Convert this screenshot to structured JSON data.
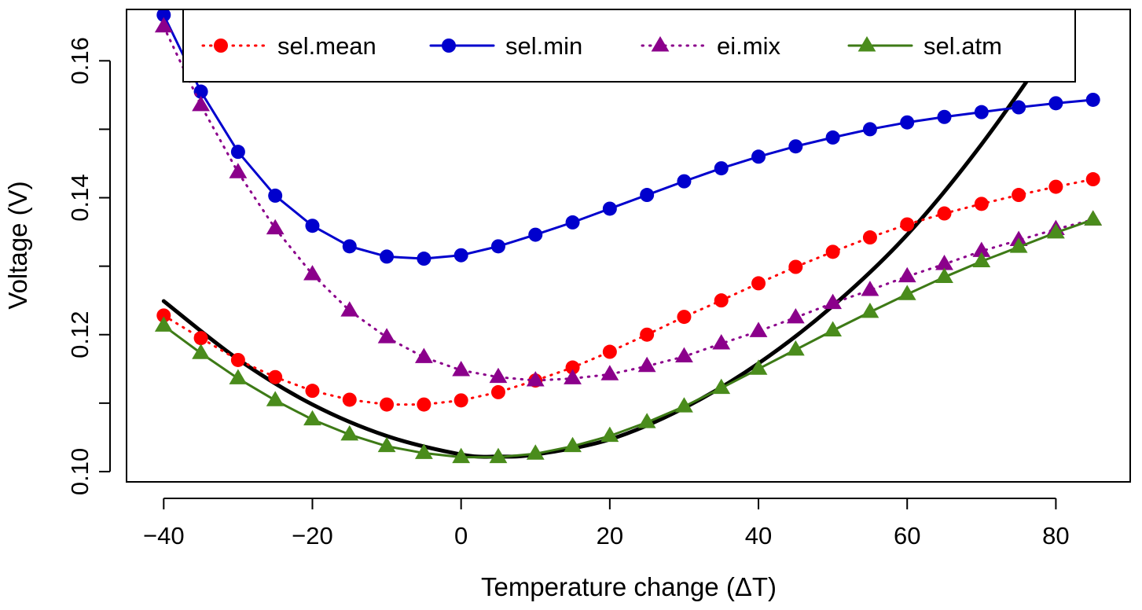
{
  "chart_data": {
    "type": "line",
    "title": "",
    "xlabel": "Temperature change (ΔT)",
    "ylabel": "Voltage (V)",
    "xlim": [
      -45,
      90
    ],
    "ylim": [
      0.0985,
      0.1675
    ],
    "x_ticks": [
      -40,
      -20,
      0,
      20,
      40,
      60,
      80
    ],
    "x_tick_labels": [
      "−40",
      "−20",
      "0",
      "20",
      "40",
      "60",
      "80"
    ],
    "y_ticks": [
      0.1,
      0.11,
      0.12,
      0.13,
      0.14,
      0.15,
      0.16
    ],
    "y_tick_labels": [
      "0.10",
      "",
      "0.12",
      "",
      "0.14",
      "",
      "0.16"
    ],
    "grid": false,
    "legend_position": "top",
    "x": [
      -40,
      -35,
      -30,
      -25,
      -20,
      -15,
      -10,
      -5,
      0,
      5,
      10,
      15,
      20,
      25,
      30,
      35,
      40,
      45,
      50,
      55,
      60,
      65,
      70,
      75,
      80,
      85
    ],
    "series": [
      {
        "name": "sel.mean",
        "color": "#ff0000",
        "line_color": "#ff0000",
        "line_style": "dotted",
        "marker": "circle",
        "values": [
          0.1228,
          0.1195,
          0.1163,
          0.1138,
          0.1118,
          0.1105,
          0.1098,
          0.1098,
          0.1104,
          0.1116,
          0.1133,
          0.1152,
          0.1175,
          0.12,
          0.1226,
          0.125,
          0.1275,
          0.1299,
          0.1321,
          0.1342,
          0.1361,
          0.1377,
          0.1391,
          0.1404,
          0.1416,
          0.1427
        ]
      },
      {
        "name": "sel.min",
        "color": "#0000cd",
        "line_color": "#0000cd",
        "line_style": "solid",
        "marker": "circle",
        "values": [
          0.1667,
          0.1555,
          0.1467,
          0.1403,
          0.1359,
          0.1329,
          0.1314,
          0.1311,
          0.1316,
          0.1329,
          0.1346,
          0.1364,
          0.1384,
          0.1404,
          0.1424,
          0.1443,
          0.146,
          0.1475,
          0.1488,
          0.15,
          0.151,
          0.1518,
          0.1525,
          0.1532,
          0.1538,
          0.1543
        ]
      },
      {
        "name": "ei.mix",
        "color": "#8b008b",
        "line_color": "#8b008b",
        "line_style": "dotted",
        "marker": "triangle",
        "values": [
          0.165,
          0.1535,
          0.1437,
          0.1355,
          0.1288,
          0.1235,
          0.1196,
          0.1167,
          0.1148,
          0.1138,
          0.1133,
          0.1136,
          0.1142,
          0.1154,
          0.1168,
          0.1187,
          0.1205,
          0.1225,
          0.1246,
          0.1265,
          0.1285,
          0.1303,
          0.1322,
          0.1338,
          0.1354,
          0.1368
        ]
      },
      {
        "name": "sel.atm",
        "color": "#4a8c1c",
        "line_color": "#3d7a16",
        "line_style": "solid",
        "marker": "triangle",
        "values": [
          0.1213,
          0.1173,
          0.1136,
          0.1104,
          0.1076,
          0.1054,
          0.1037,
          0.1027,
          0.1021,
          0.1021,
          0.1026,
          0.1037,
          0.1052,
          0.1072,
          0.1095,
          0.1122,
          0.115,
          0.1178,
          0.1206,
          0.1233,
          0.1259,
          0.1284,
          0.1307,
          0.1328,
          0.1349,
          0.1368
        ]
      }
    ],
    "reference_curve": {
      "color": "#000000",
      "line_style": "solid",
      "x": [
        -40,
        -30,
        -20,
        -10,
        0,
        5,
        10,
        20,
        30,
        40,
        50,
        60,
        70,
        80,
        85
      ],
      "values": [
        0.1249,
        0.1164,
        0.1098,
        0.1052,
        0.1025,
        0.1022,
        0.1025,
        0.1047,
        0.1093,
        0.1158,
        0.1242,
        0.1346,
        0.1478,
        0.1633,
        0.1725
      ]
    },
    "legend_order": [
      "sel.mean",
      "sel.min",
      "ei.mix",
      "sel.atm"
    ]
  }
}
